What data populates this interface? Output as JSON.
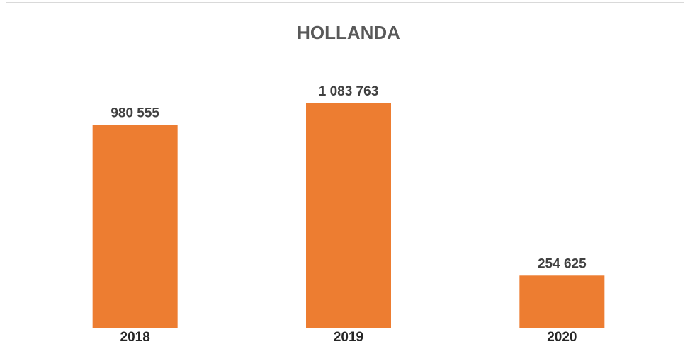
{
  "chart_data": {
    "type": "bar",
    "title": "HOLLANDA",
    "categories": [
      "2018",
      "2019",
      "2020"
    ],
    "values": [
      980555,
      1083763,
      254625
    ],
    "value_labels": [
      "980 555",
      "1 083 763",
      "254 625"
    ],
    "color": "#ED7D31"
  }
}
